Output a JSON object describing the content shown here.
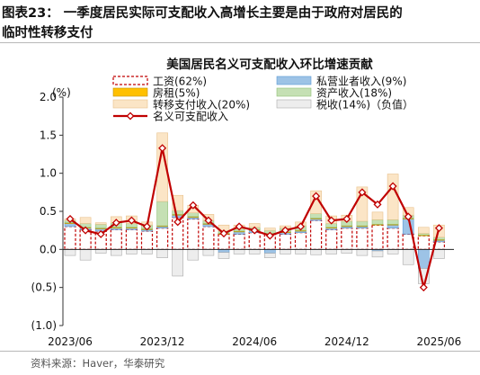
{
  "figure": {
    "title_line1": "图表23：  一季度居民实际可支配收入高增长主要是由于政府对居民的",
    "title_line2": "临时性转移支付",
    "source": "资料来源：Haver，华泰研究"
  },
  "colors": {
    "wage_fill": "#ffffff",
    "wage_border": "#c00000",
    "business": "#9dc3e6",
    "rent": "#ffc000",
    "property": "#c5e0b4",
    "transfer": "#fbe5c6",
    "tax": "#ededed",
    "line": "#c00000"
  },
  "chart_data": {
    "type": "bar",
    "stacked": true,
    "title": "美国居民名义可支配收入环比增速贡献",
    "y_unit": "(%)",
    "ylim": [
      -1.0,
      2.0
    ],
    "yticks": [
      -1.0,
      -0.5,
      0.0,
      0.5,
      1.0,
      1.5,
      2.0
    ],
    "ytick_labels": [
      "(1.0)",
      "(0.5)",
      "0.0",
      "0.5",
      "1.0",
      "1.5",
      "2.0"
    ],
    "xtick_labels": [
      "2023/06",
      "2023/12",
      "2024/06",
      "2024/12",
      "2025/06"
    ],
    "xtick_positions": [
      0,
      6,
      12,
      18,
      24
    ],
    "grid": false,
    "legend_position": "top-left",
    "x": [
      "2023/06",
      "2023/07",
      "2023/08",
      "2023/09",
      "2023/10",
      "2023/11",
      "2023/12",
      "2024/01",
      "2024/02",
      "2024/03",
      "2024/04",
      "2024/05",
      "2024/06",
      "2024/07",
      "2024/08",
      "2024/09",
      "2024/10",
      "2024/11",
      "2024/12",
      "2025/01",
      "2025/02",
      "2025/03",
      "2025/04",
      "2025/05",
      "2025/06"
    ],
    "series": [
      {
        "name": "工资(62%)",
        "key": "wage",
        "kind": "bar",
        "values": [
          0.3,
          0.26,
          0.24,
          0.26,
          0.26,
          0.24,
          0.28,
          0.42,
          0.4,
          0.3,
          0.2,
          0.2,
          0.22,
          0.2,
          0.2,
          0.22,
          0.38,
          0.26,
          0.28,
          0.28,
          0.32,
          0.28,
          0.2,
          0.18,
          0.1
        ]
      },
      {
        "name": "私营业者收入(9%)",
        "key": "business",
        "kind": "bar",
        "values": [
          0.04,
          0.02,
          0.03,
          0.02,
          0.02,
          0.02,
          0.02,
          0.03,
          0.02,
          0.03,
          -0.04,
          0.03,
          0.03,
          -0.05,
          0.02,
          0.02,
          0.02,
          0.02,
          0.02,
          0.02,
          -0.02,
          0.04,
          0.2,
          -0.25,
          0.02
        ]
      },
      {
        "name": "房租(5%)",
        "key": "rent",
        "kind": "bar",
        "values": [
          0.01,
          0.01,
          0.01,
          0.01,
          0.01,
          0.01,
          0.01,
          0.01,
          0.01,
          0.01,
          0.01,
          0.01,
          0.01,
          0.01,
          0.01,
          0.01,
          0.01,
          0.01,
          0.01,
          0.01,
          0.01,
          0.01,
          0.01,
          0.01,
          0.01
        ]
      },
      {
        "name": "资产收入(18%)",
        "key": "property",
        "kind": "bar",
        "values": [
          0.03,
          0.05,
          0.05,
          0.06,
          0.05,
          0.05,
          0.32,
          0.05,
          0.05,
          0.04,
          0.03,
          0.03,
          0.03,
          0.04,
          0.05,
          0.06,
          0.06,
          0.05,
          0.06,
          0.06,
          0.06,
          0.06,
          0.04,
          0.02,
          0.03
        ]
      },
      {
        "name": "转移支付收入(20%)",
        "key": "transfer",
        "kind": "bar",
        "values": [
          0.02,
          0.08,
          0.02,
          0.08,
          0.1,
          0.04,
          0.9,
          0.2,
          0.1,
          0.08,
          0.08,
          0.05,
          0.05,
          0.03,
          0.03,
          0.05,
          0.3,
          0.1,
          0.08,
          0.45,
          0.1,
          0.6,
          0.1,
          0.08,
          0.16
        ]
      },
      {
        "name": "税收(14%)（负值）",
        "key": "tax",
        "kind": "bar",
        "values": [
          -0.08,
          -0.14,
          -0.05,
          -0.08,
          -0.06,
          -0.06,
          -0.11,
          -0.35,
          -0.14,
          -0.08,
          -0.08,
          -0.06,
          -0.06,
          -0.06,
          -0.06,
          -0.06,
          -0.07,
          -0.06,
          -0.05,
          -0.08,
          -0.08,
          -0.06,
          -0.2,
          -0.2,
          -0.12
        ]
      },
      {
        "name": "名义可支配收入",
        "key": "total",
        "kind": "line",
        "values": [
          0.4,
          0.25,
          0.2,
          0.35,
          0.38,
          0.3,
          1.33,
          0.36,
          0.58,
          0.38,
          0.21,
          0.3,
          0.25,
          0.18,
          0.25,
          0.3,
          0.7,
          0.38,
          0.4,
          0.75,
          0.59,
          0.83,
          0.43,
          -0.5,
          0.28
        ]
      }
    ]
  }
}
